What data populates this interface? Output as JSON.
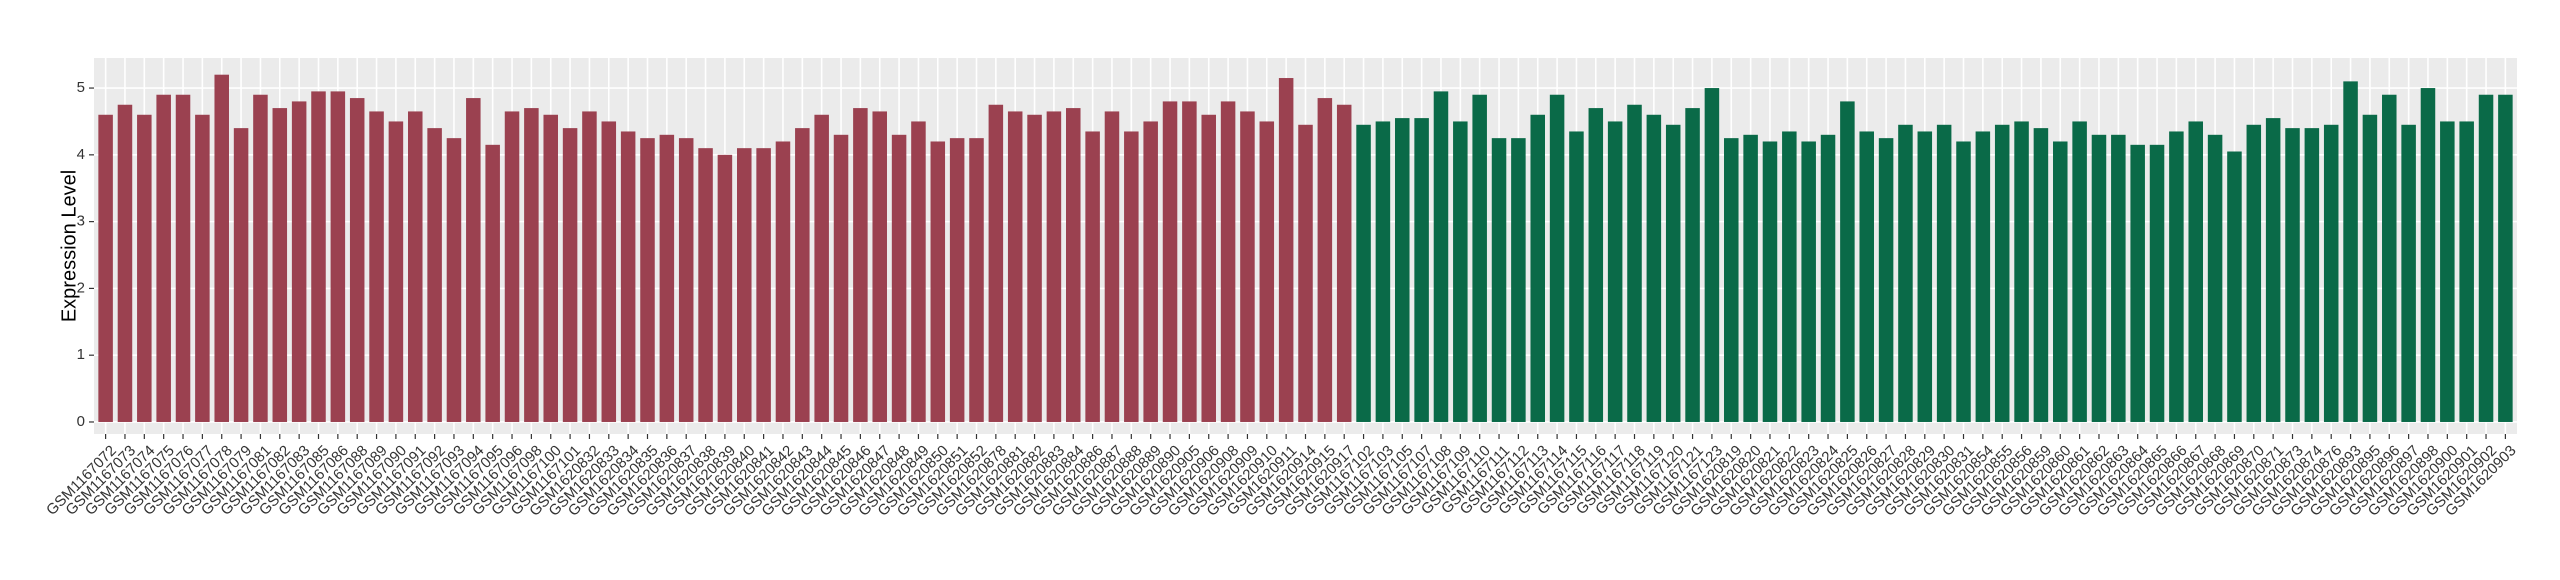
{
  "chart_data": {
    "type": "bar",
    "y_label": "Expression Level",
    "ylim": [
      -0.18,
      5.45
    ],
    "yticks": [
      0,
      1,
      2,
      3,
      4,
      5
    ],
    "grid": true,
    "series": [
      {
        "color": "#9b4150",
        "categories": [
          "GSM1167072",
          "GSM1167073",
          "GSM1167074",
          "GSM1167075",
          "GSM1167076",
          "GSM1167077",
          "GSM1167078",
          "GSM1167079",
          "GSM1167081",
          "GSM1167082",
          "GSM1167083",
          "GSM1167085",
          "GSM1167086",
          "GSM1167088",
          "GSM1167089",
          "GSM1167090",
          "GSM1167091",
          "GSM1167092",
          "GSM1167093",
          "GSM1167094",
          "GSM1167095",
          "GSM1167096",
          "GSM1167098",
          "GSM1167100",
          "GSM1167101",
          "GSM1620832",
          "GSM1620833",
          "GSM1620834",
          "GSM1620835",
          "GSM1620836",
          "GSM1620837",
          "GSM1620838",
          "GSM1620839",
          "GSM1620840",
          "GSM1620841",
          "GSM1620842",
          "GSM1620843",
          "GSM1620844",
          "GSM1620845",
          "GSM1620846",
          "GSM1620847",
          "GSM1620848",
          "GSM1620849",
          "GSM1620850",
          "GSM1620851",
          "GSM1620852",
          "GSM1620878",
          "GSM1620881",
          "GSM1620882",
          "GSM1620883",
          "GSM1620884",
          "GSM1620886",
          "GSM1620887",
          "GSM1620888",
          "GSM1620889",
          "GSM1620890",
          "GSM1620905",
          "GSM1620906",
          "GSM1620908",
          "GSM1620909",
          "GSM1620910",
          "GSM1620911",
          "GSM1620914",
          "GSM1620915",
          "GSM1620917"
        ],
        "values": [
          4.6,
          4.75,
          4.6,
          4.9,
          4.9,
          4.6,
          5.2,
          4.4,
          4.9,
          4.7,
          4.8,
          4.95,
          4.95,
          4.85,
          4.65,
          4.5,
          4.65,
          4.4,
          4.25,
          4.85,
          4.15,
          4.65,
          4.7,
          4.6,
          4.4,
          4.65,
          4.5,
          4.35,
          4.25,
          4.3,
          4.25,
          4.1,
          4.0,
          4.1,
          4.1,
          4.2,
          4.4,
          4.6,
          4.3,
          4.7,
          4.65,
          4.3,
          4.5,
          4.2,
          4.25,
          4.25,
          4.75,
          4.65,
          4.6,
          4.65,
          4.7,
          4.35,
          4.65,
          4.35,
          4.5,
          4.8,
          4.8,
          4.6,
          4.8,
          4.65,
          4.5,
          5.15,
          4.45,
          4.85,
          4.75
        ]
      },
      {
        "color": "#0a6a48",
        "categories": [
          "GSM1167102",
          "GSM1167103",
          "GSM1167105",
          "GSM1167107",
          "GSM1167108",
          "GSM1167109",
          "GSM1167110",
          "GSM1167111",
          "GSM1167112",
          "GSM1167113",
          "GSM1167114",
          "GSM1167115",
          "GSM1167116",
          "GSM1167117",
          "GSM1167118",
          "GSM1167119",
          "GSM1167120",
          "GSM1167121",
          "GSM1167123",
          "GSM1620819",
          "GSM1620820",
          "GSM1620821",
          "GSM1620822",
          "GSM1620823",
          "GSM1620824",
          "GSM1620825",
          "GSM1620826",
          "GSM1620827",
          "GSM1620828",
          "GSM1620829",
          "GSM1620830",
          "GSM1620831",
          "GSM1620854",
          "GSM1620855",
          "GSM1620856",
          "GSM1620859",
          "GSM1620860",
          "GSM1620861",
          "GSM1620862",
          "GSM1620863",
          "GSM1620864",
          "GSM1620865",
          "GSM1620866",
          "GSM1620867",
          "GSM1620868",
          "GSM1620869",
          "GSM1620870",
          "GSM1620871",
          "GSM1620873",
          "GSM1620874",
          "GSM1620876",
          "GSM1620893",
          "GSM1620895",
          "GSM1620896",
          "GSM1620897",
          "GSM1620898",
          "GSM1620900",
          "GSM1620901",
          "GSM1620902",
          "GSM1620903"
        ],
        "values": [
          4.45,
          4.5,
          4.55,
          4.55,
          4.95,
          4.5,
          4.9,
          4.25,
          4.25,
          4.6,
          4.9,
          4.35,
          4.7,
          4.5,
          4.75,
          4.6,
          4.45,
          4.7,
          5.0,
          4.25,
          4.3,
          4.2,
          4.35,
          4.2,
          4.3,
          4.8,
          4.35,
          4.25,
          4.45,
          4.35,
          4.45,
          4.2,
          4.35,
          4.45,
          4.5,
          4.4,
          4.2,
          4.5,
          4.3,
          4.3,
          4.15,
          4.15,
          4.35,
          4.5,
          4.3,
          4.05,
          4.45,
          4.55,
          4.4,
          4.4,
          4.45,
          5.1,
          4.6,
          4.9,
          4.45,
          5.0,
          4.5,
          4.5,
          4.9,
          4.9
        ]
      }
    ]
  }
}
